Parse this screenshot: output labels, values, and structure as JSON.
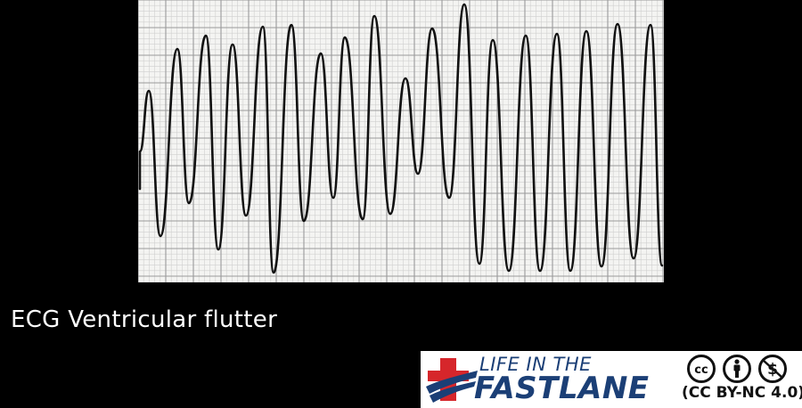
{
  "caption": "ECG Ventricular flutter",
  "branding": {
    "line1": "LIFE IN THE",
    "line2": "FASTLANE",
    "license": "(CC BY-NC 4.0)",
    "icons": [
      "cc-icon",
      "by-person-icon",
      "non-commercial-icon"
    ],
    "brand_color": "#1b3f76",
    "accent_color": "#d6262b"
  },
  "ecg": {
    "rhythm": "ventricular flutter",
    "trace_color": "#111111",
    "grid_color": "#9a9a9a"
  }
}
